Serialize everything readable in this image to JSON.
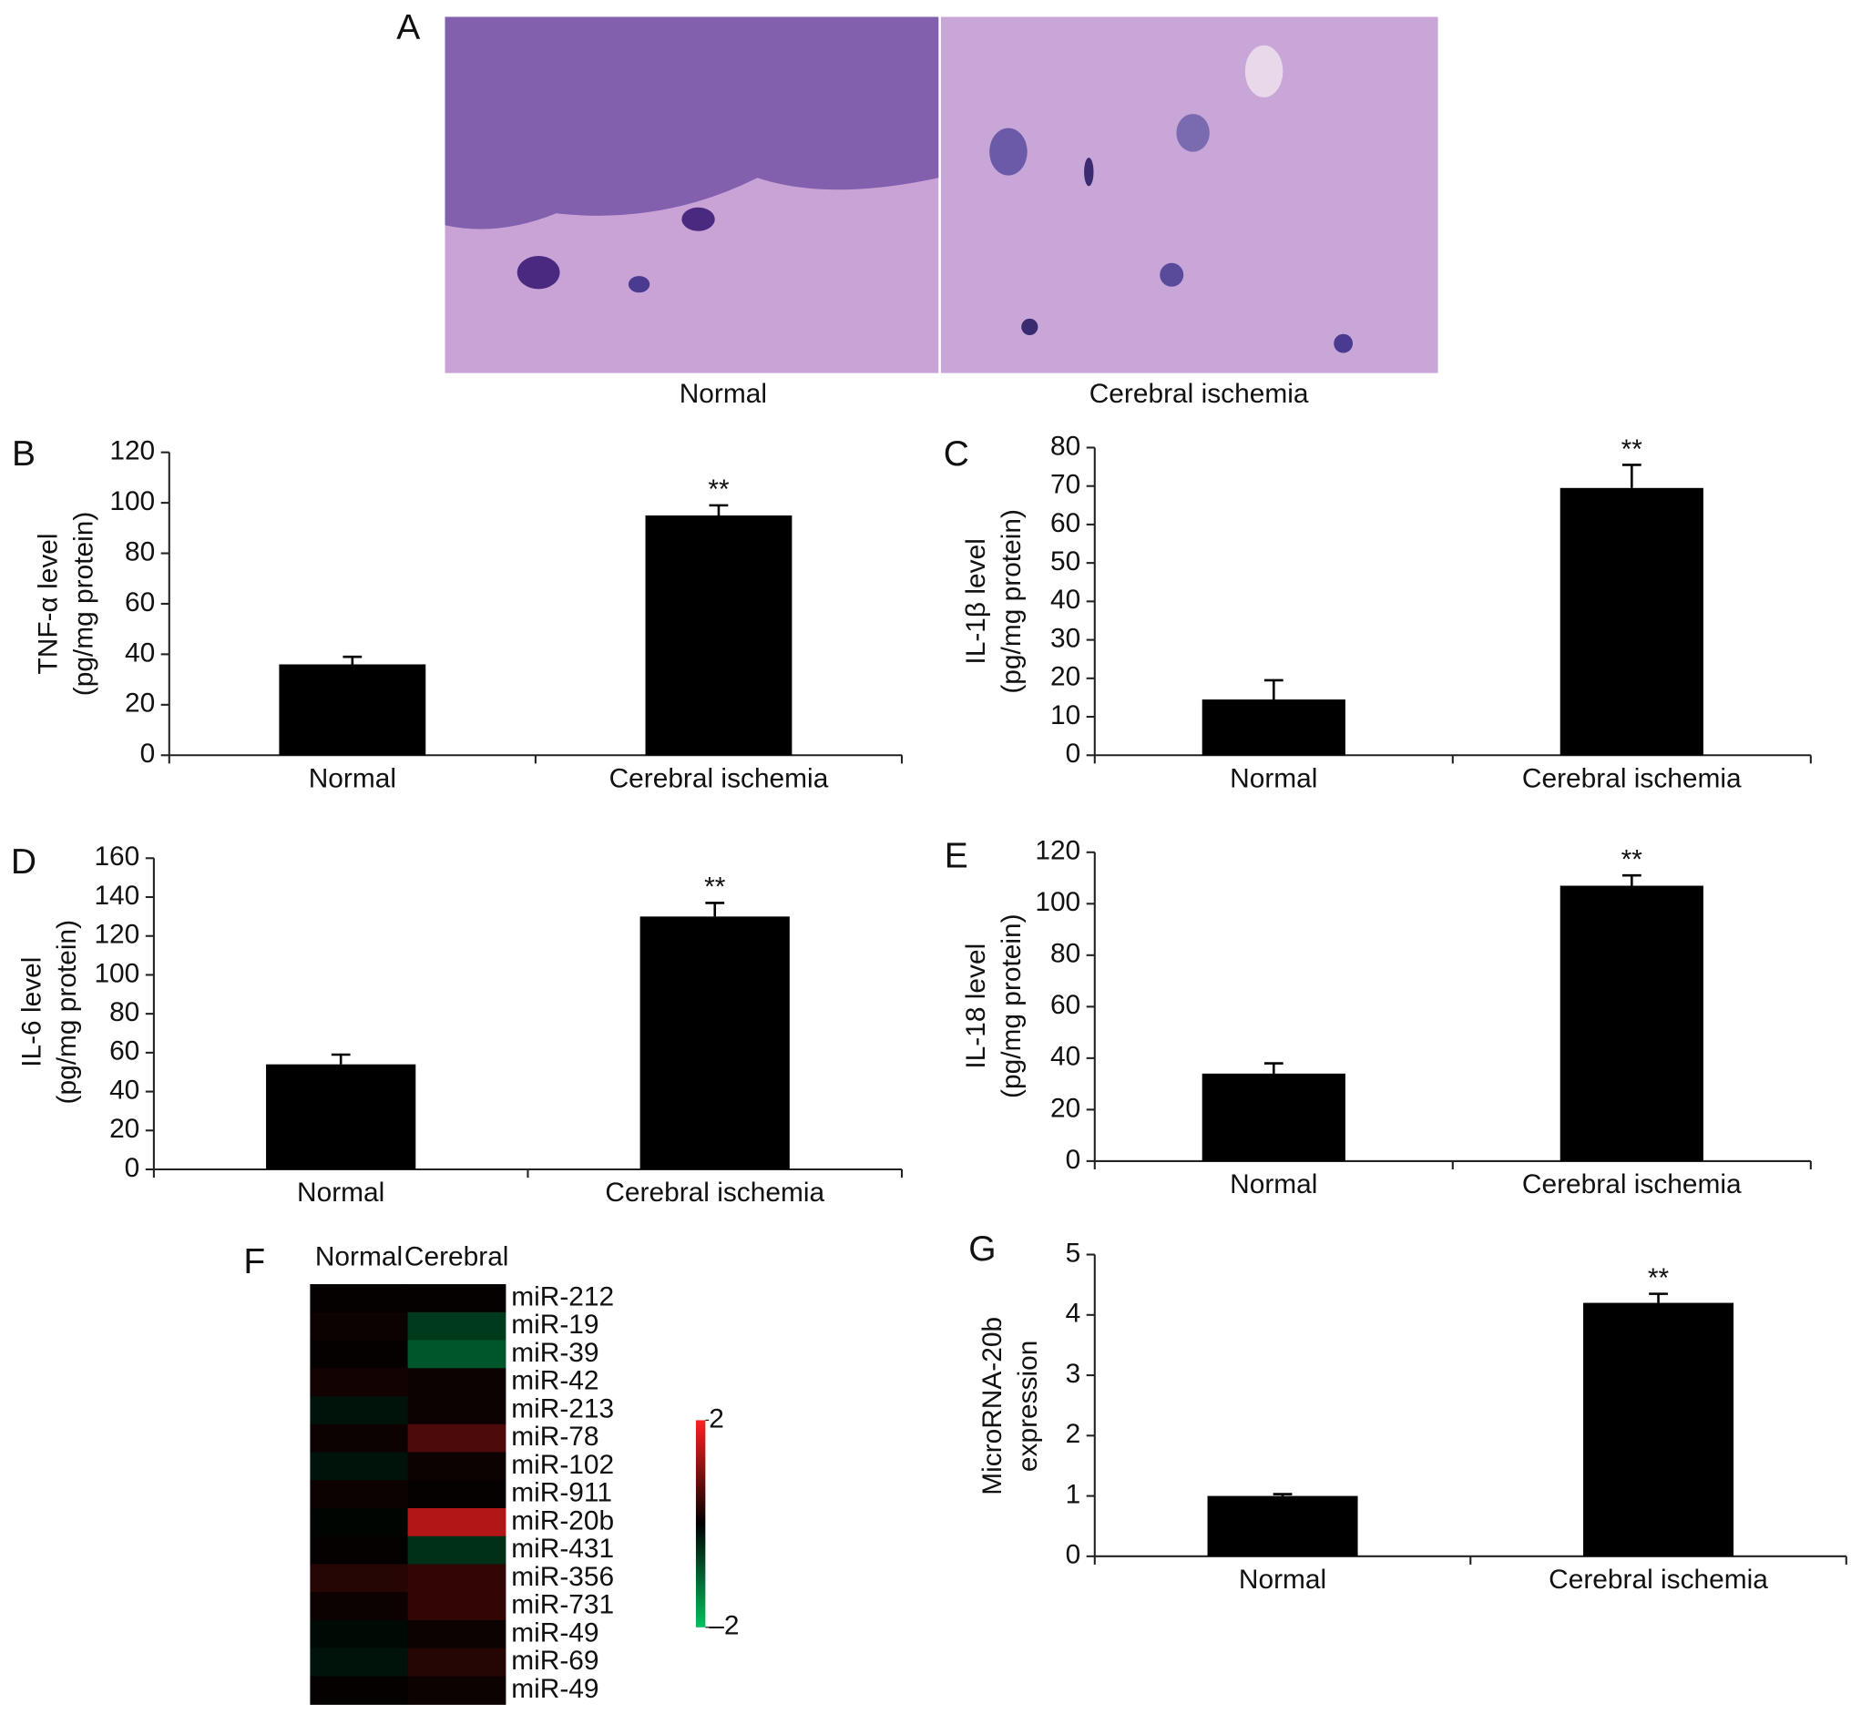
{
  "image_panel": {
    "label": "A",
    "captions": [
      "Normal",
      "Cerebral ischemia"
    ]
  },
  "chart_data": [
    {
      "type": "bar",
      "panel": "B",
      "ylabel": [
        "TNF-α level",
        "(pg/mg protein)"
      ],
      "categories": [
        "Normal",
        "Cerebral ischemia"
      ],
      "values": [
        36,
        95
      ],
      "errors": [
        3,
        4
      ],
      "significance_labels": [
        null,
        "**"
      ],
      "color": "#000000",
      "ylim": [
        0,
        120
      ],
      "yticks": [
        0,
        20,
        40,
        60,
        80,
        100,
        120
      ]
    },
    {
      "type": "bar",
      "panel": "C",
      "ylabel": [
        "IL-1β level",
        "(pg/mg protein)"
      ],
      "categories": [
        "Normal",
        "Cerebral ischemia"
      ],
      "values": [
        14.5,
        69.5
      ],
      "errors": [
        5,
        6
      ],
      "significance_labels": [
        null,
        "**"
      ],
      "color": "#000000",
      "ylim": [
        0,
        80
      ],
      "yticks": [
        0,
        10,
        20,
        30,
        40,
        50,
        60,
        70,
        80
      ]
    },
    {
      "type": "bar",
      "panel": "D",
      "ylabel": [
        "IL-6 level",
        "(pg/mg protein)"
      ],
      "categories": [
        "Normal",
        "Cerebral ischemia"
      ],
      "values": [
        54,
        130
      ],
      "errors": [
        5,
        7
      ],
      "significance_labels": [
        null,
        "**"
      ],
      "color": "#000000",
      "ylim": [
        0,
        160
      ],
      "yticks": [
        0,
        20,
        40,
        60,
        80,
        100,
        120,
        140,
        160
      ]
    },
    {
      "type": "bar",
      "panel": "E",
      "ylabel": [
        "IL-18 level",
        "(pg/mg protein)"
      ],
      "categories": [
        "Normal",
        "Cerebral ischemia"
      ],
      "values": [
        34,
        107
      ],
      "errors": [
        4,
        4
      ],
      "significance_labels": [
        null,
        "**"
      ],
      "color": "#000000",
      "ylim": [
        0,
        120
      ],
      "yticks": [
        0,
        20,
        40,
        60,
        80,
        100,
        120
      ]
    },
    {
      "type": "heatmap",
      "panel": "F",
      "columns": [
        "Normal",
        "Cerebral"
      ],
      "rows": [
        "miR-212",
        "miR-19",
        "miR-39",
        "miR-42",
        "miR-213",
        "miR-78",
        "miR-102",
        "miR-911",
        "miR-20b",
        "miR-431",
        "miR-356",
        "miR-731",
        "miR-49",
        "miR-69",
        "miR-49"
      ],
      "values": [
        [
          0.05,
          0.05
        ],
        [
          0.1,
          -0.6
        ],
        [
          0.05,
          -0.9
        ],
        [
          0.15,
          0.1
        ],
        [
          -0.2,
          0.1
        ],
        [
          0.1,
          0.6
        ],
        [
          -0.2,
          0.1
        ],
        [
          0.1,
          0.05
        ],
        [
          -0.05,
          1.4
        ],
        [
          0.05,
          -0.5
        ],
        [
          0.3,
          0.4
        ],
        [
          0.1,
          0.4
        ],
        [
          -0.1,
          0.1
        ],
        [
          -0.2,
          0.3
        ],
        [
          0.05,
          0.1
        ]
      ],
      "zlim": [
        -2,
        2
      ],
      "zticks": [
        2,
        {
          "value": -2,
          "label": "–2"
        }
      ],
      "colorscale": [
        "#00c060",
        "#000000",
        "#ff2020"
      ]
    },
    {
      "type": "bar",
      "panel": "G",
      "ylabel": [
        "MicroRNA-20b",
        "expression"
      ],
      "categories": [
        "Normal",
        "Cerebral ischemia"
      ],
      "values": [
        1,
        4.2
      ],
      "errors": [
        0.03,
        0.15
      ],
      "significance_labels": [
        null,
        "**"
      ],
      "color": "#000000",
      "ylim": [
        0,
        5
      ],
      "yticks": [
        0,
        1,
        2,
        3,
        4,
        5
      ]
    }
  ]
}
